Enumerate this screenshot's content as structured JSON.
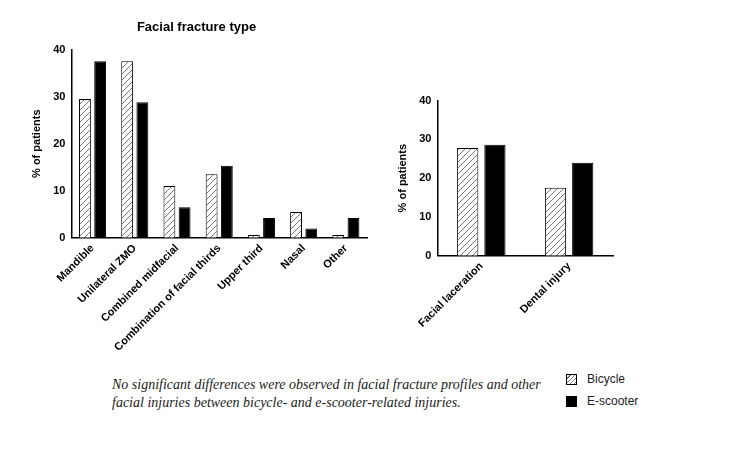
{
  "chart_data": [
    {
      "type": "bar",
      "title": "Facial fracture type",
      "y_label": "% of patients",
      "categories": [
        "Mandible",
        "Unilateral ZMO",
        "Combined midfacial",
        "Combination of facial thirds",
        "Upper third",
        "Nasal",
        "Other"
      ],
      "series": [
        {
          "name": "Bicycle",
          "color": "#ffffff",
          "values": [
            29.5,
            37.5,
            11,
            13.5,
            0.6,
            5.5,
            0.6
          ]
        },
        {
          "name": "E-scooter",
          "color": "#000000",
          "values": [
            37.5,
            28.8,
            6.5,
            15.3,
            4.2,
            2,
            4.2
          ]
        }
      ],
      "ylim": [
        0,
        40
      ],
      "yticks": [
        0,
        10,
        20,
        30,
        40
      ],
      "grid": false
    },
    {
      "type": "bar",
      "y_label": "% of patients",
      "categories": [
        "Facial laceration",
        "Dental injury"
      ],
      "series": [
        {
          "name": "Bicycle",
          "color": "#ffffff",
          "values": [
            27.8,
            17.5
          ]
        },
        {
          "name": "E-scooter",
          "color": "#000000",
          "values": [
            28.6,
            24
          ]
        }
      ],
      "ylim": [
        0,
        40
      ],
      "yticks": [
        0,
        10,
        20,
        30,
        40
      ],
      "grid": false,
      "legend": "bottom-right"
    }
  ],
  "caption": "No significant differences were observed in facial fracture profiles and other facial injuries between bicycle- and e-scooter-related injuries."
}
